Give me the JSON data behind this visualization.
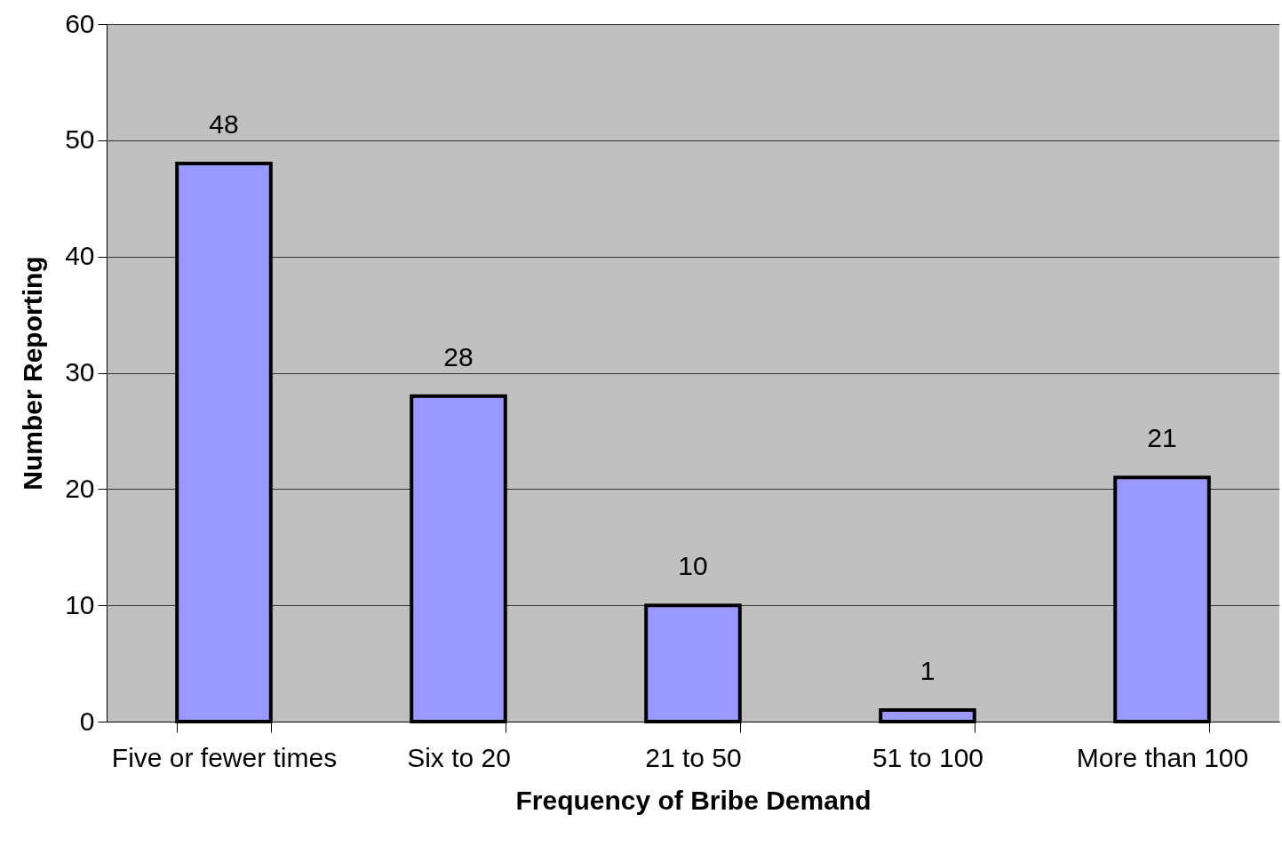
{
  "chart_data": {
    "type": "bar",
    "xlabel": "Frequency of Bribe Demand",
    "ylabel": "Number Reporting",
    "categories": [
      "Five or fewer times",
      "Six to 20",
      "21 to 50",
      "51 to 100",
      "More than 100"
    ],
    "values": [
      48,
      28,
      10,
      1,
      21
    ],
    "color": "#9999ff",
    "ylim": [
      0,
      60
    ],
    "yticks": [
      0,
      10,
      20,
      30,
      40,
      50,
      60
    ],
    "grid": "y",
    "data_labels": true
  }
}
